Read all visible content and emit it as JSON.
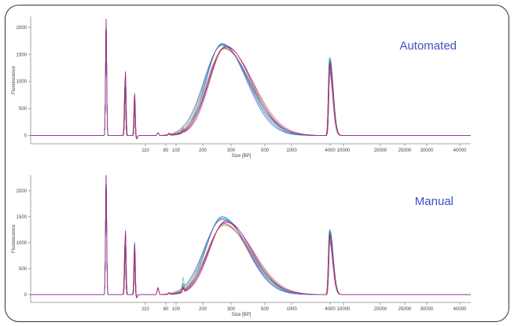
{
  "colors": {
    "trace_palette": [
      "#1f2cff",
      "#e8002d",
      "#9b1fb8",
      "#1aa3ff",
      "#17c3b2",
      "#4a4a4a",
      "#00c853",
      "#ff7043",
      "#e91e63",
      "#7b1fa2"
    ],
    "label": "#3f4fc4",
    "border": "#333333"
  },
  "chart_data": [
    {
      "type": "line",
      "label": "Automated",
      "ylabel": "Fluorescence",
      "xlabel": "Size [BP]",
      "ylim": [
        -150,
        2200
      ],
      "yticks": [
        0,
        500,
        1000,
        1500,
        2000
      ],
      "xtick_labels": [
        "110",
        "80",
        "100",
        "200",
        "300",
        "500",
        "1000",
        "4000",
        "10000",
        "20000",
        "25000",
        "30000",
        "40000"
      ],
      "peaks": {
        "marker_1": 2150,
        "marker_2": 1360,
        "marker_3": 800,
        "small_1": 50,
        "small_2": 25,
        "small_3": 60,
        "smear_max": 1700,
        "smear_min": 1600,
        "upper_marker": 1450
      },
      "n_traces": 10
    },
    {
      "type": "line",
      "label": "Manual",
      "ylabel": "Fluorescence",
      "xlabel": "Size [BP]",
      "ylim": [
        -150,
        2300
      ],
      "yticks": [
        0,
        500,
        1000,
        1500,
        2000
      ],
      "xtick_labels": [
        "110",
        "80",
        "100",
        "200",
        "300",
        "500",
        "1000",
        "4000",
        "10000",
        "20000",
        "25000",
        "30000",
        "40000"
      ],
      "peaks": {
        "marker_1": 2300,
        "marker_2": 1420,
        "marker_3": 1030,
        "small_1": 130,
        "small_2": 20,
        "small_3": 270,
        "smear_max": 1500,
        "smear_min": 1330,
        "upper_marker": 1260
      },
      "n_traces": 10
    }
  ]
}
